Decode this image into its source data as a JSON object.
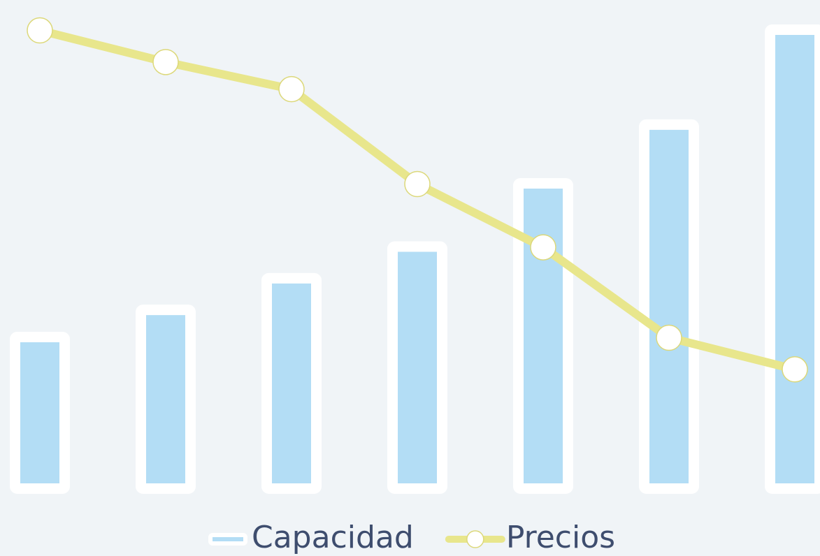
{
  "chart_data": {
    "type": "bar",
    "series": [
      {
        "name": "Capacidad",
        "type": "bar",
        "color": "#b3ddf5",
        "values": [
          32,
          38,
          45,
          52,
          66,
          79,
          100
        ]
      },
      {
        "name": "Precios",
        "type": "line",
        "color": "#e8e68c",
        "values": [
          101,
          94,
          88,
          67,
          53,
          33,
          26
        ]
      }
    ],
    "ylim": [
      0,
      105
    ],
    "legend": "bottom"
  }
}
